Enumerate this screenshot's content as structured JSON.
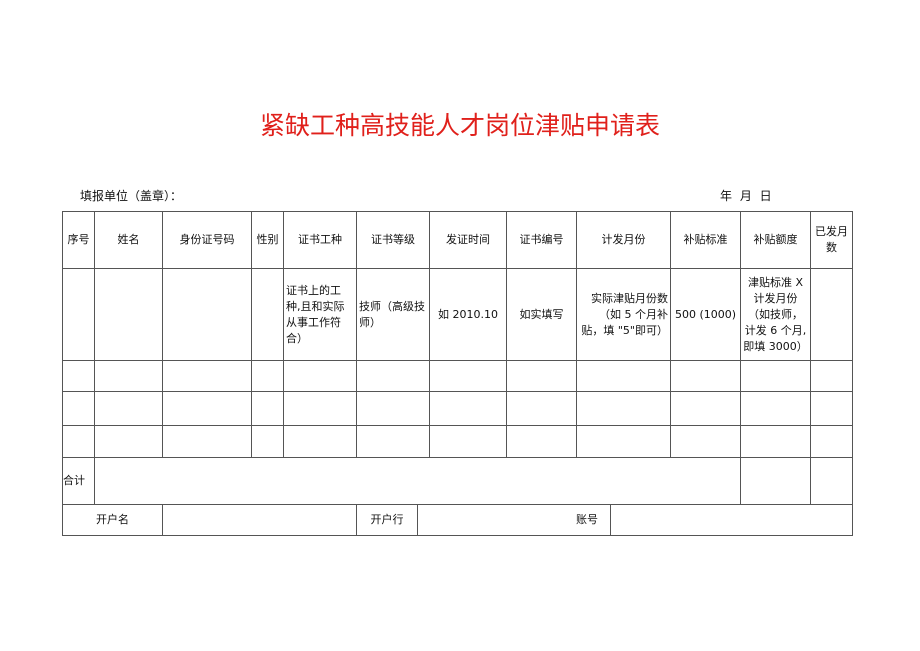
{
  "title": "紧缺工种高技能人才岗位津贴申请表",
  "unit_label": "填报单位（盖章）：",
  "date_label": "年 月 日",
  "headers": [
    "序号",
    "姓名",
    "身份证号码",
    "性别",
    "证书工种",
    "证书等级",
    "发证时间",
    "证书编号",
    "计发月份",
    "补贴标准",
    "补贴额度",
    "已发月数"
  ],
  "example_row": {
    "cert_type": "证书上的工种,且和实际从事工作符合）",
    "cert_level": "技师（高级技师）",
    "issue_date": "如 2010.10",
    "cert_no": "如实填写",
    "months": "实际津贴月份数（如 5 个月补贴，填 \"5\"即可）",
    "standard": "500 (1000)",
    "amount": "津贴标准 X 计发月份（如技师，计发 6 个月,即填 3000）"
  },
  "total_label": "合计",
  "footer": {
    "account_name": "开户名",
    "bank": "开户行",
    "account_no": "账号"
  },
  "colors": {
    "title": "#e0201b",
    "border": "#555555"
  }
}
